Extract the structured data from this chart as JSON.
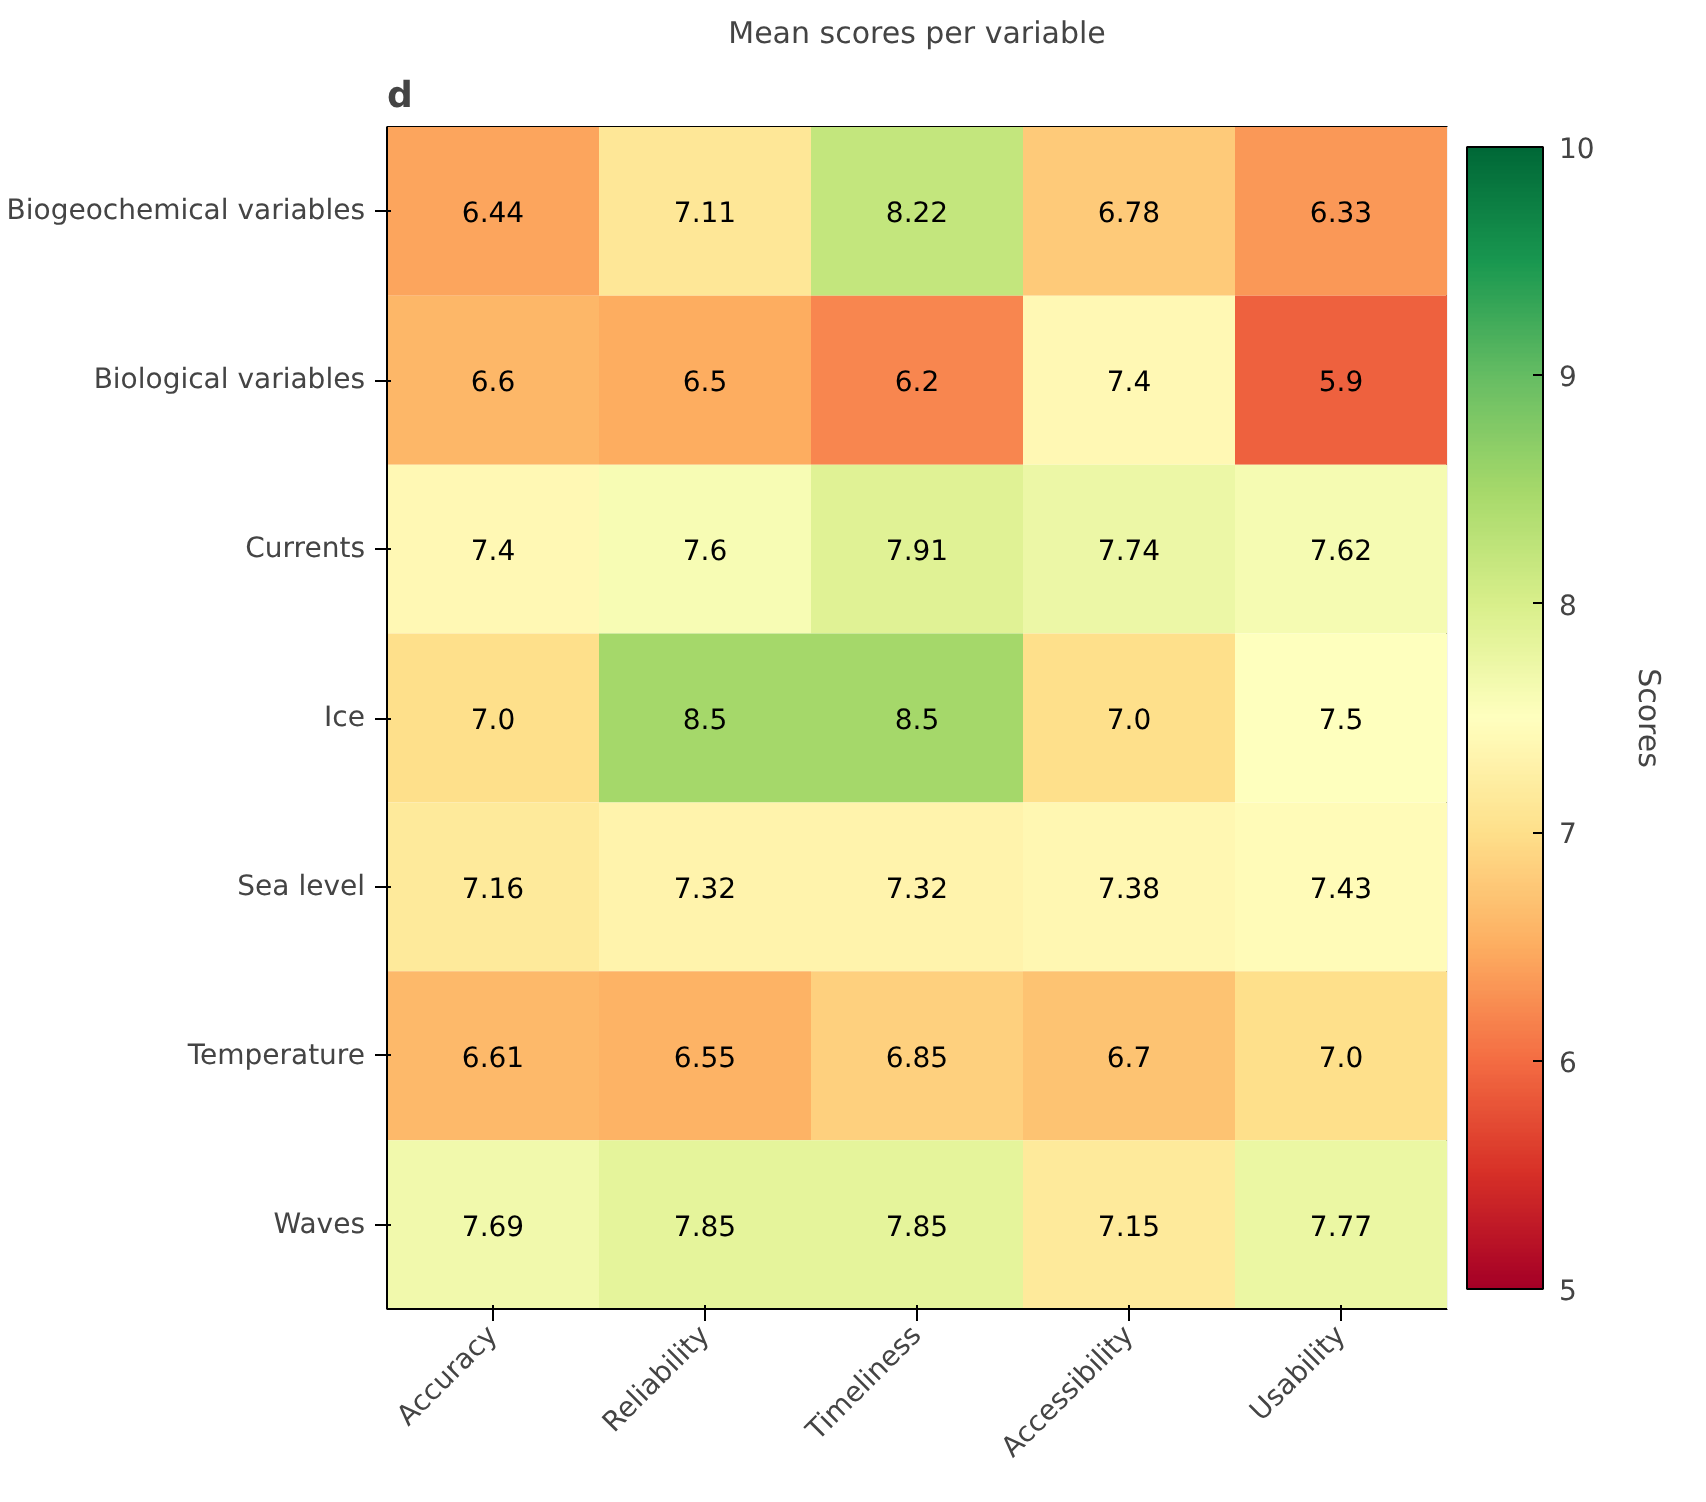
{
  "chart_data": {
    "type": "heatmap",
    "title": "Mean scores per variable",
    "categories": [
      "Accuracy",
      "Reliability",
      "Timeliness",
      "Accessibility",
      "Usability"
    ],
    "y_categories": [
      "Biogeochemical variables",
      "Biological variables",
      "Currents",
      "Ice",
      "Sea level",
      "Temperature",
      "Waves"
    ],
    "cells": [
      [
        6.44,
        7.11,
        8.22,
        6.78,
        6.33
      ],
      [
        6.6,
        6.5,
        6.2,
        7.4,
        5.9
      ],
      [
        7.4,
        7.6,
        7.91,
        7.74,
        7.62
      ],
      [
        7.0,
        8.5,
        8.5,
        7.0,
        7.5
      ],
      [
        7.16,
        7.32,
        7.32,
        7.38,
        7.43
      ],
      [
        6.61,
        6.55,
        6.85,
        6.7,
        7.0
      ],
      [
        7.69,
        7.85,
        7.85,
        7.15,
        7.77
      ]
    ],
    "cell_labels": [
      [
        "6.44",
        "7.11",
        "8.22",
        "6.78",
        "6.33"
      ],
      [
        "6.6",
        "6.5",
        "6.2",
        "7.4",
        "5.9"
      ],
      [
        "7.4",
        "7.6",
        "7.91",
        "7.74",
        "7.62"
      ],
      [
        "7.0",
        "8.5",
        "8.5",
        "7.0",
        "7.5"
      ],
      [
        "7.16",
        "7.32",
        "7.32",
        "7.38",
        "7.43"
      ],
      [
        "6.61",
        "6.55",
        "6.85",
        "6.7",
        "7.0"
      ],
      [
        "7.69",
        "7.85",
        "7.85",
        "7.15",
        "7.77"
      ]
    ],
    "clim": [
      5,
      10
    ],
    "cticks": [
      5,
      6,
      7,
      8,
      9,
      10
    ],
    "clabel": "Scores",
    "data_labels": true,
    "grid": false,
    "annotations": [
      "d"
    ]
  }
}
